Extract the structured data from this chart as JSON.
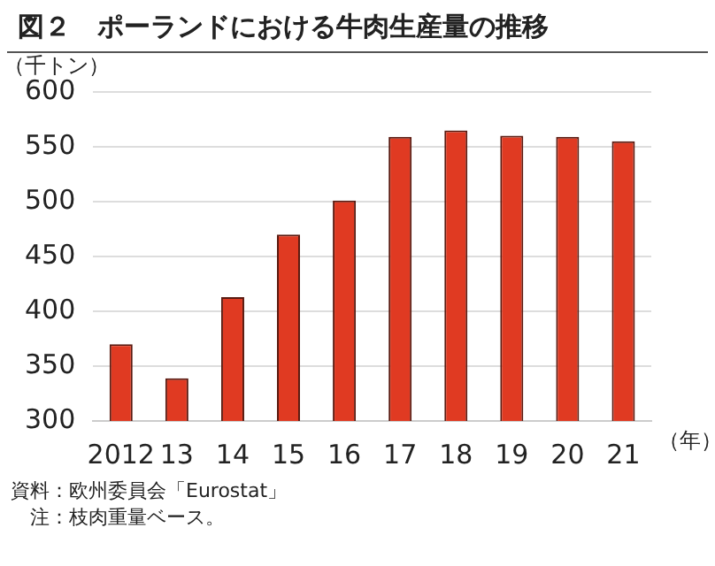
{
  "chart_data": {
    "type": "bar",
    "title": "図２　ポーランドにおける牛肉生産量の推移",
    "ylabel": "（千トン）",
    "xlabel": "（年）",
    "categories": [
      "2012",
      "13",
      "14",
      "15",
      "16",
      "17",
      "18",
      "19",
      "20",
      "21"
    ],
    "values": [
      370,
      339,
      413,
      470,
      501,
      559,
      565,
      560,
      559,
      555
    ],
    "color": "#e03a22",
    "ylim": [
      300,
      600
    ],
    "yticks": [
      300,
      350,
      400,
      450,
      500,
      550,
      600
    ],
    "grid": "y",
    "annotations": [
      "資料：欧州委員会「Eurostat」",
      "　注：枝肉重量ベース。"
    ]
  }
}
